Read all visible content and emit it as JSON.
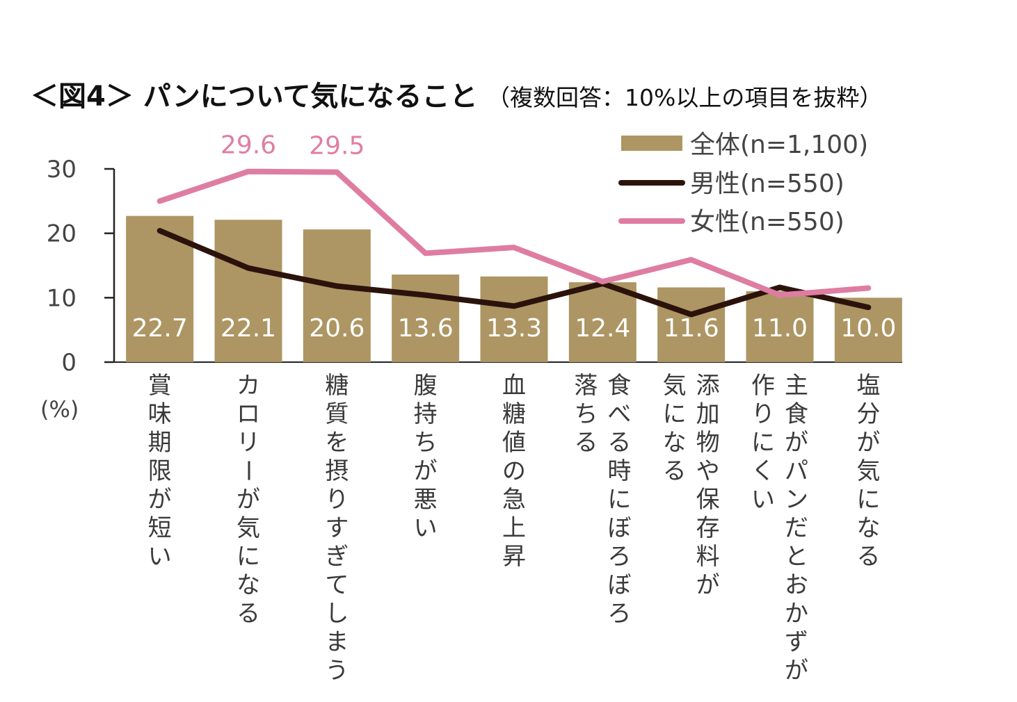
{
  "chart_data": {
    "type": "bar",
    "title": "＜図4＞ パンについて気になること",
    "subtitle": "（複数回答：10%以上の項目を抜粋）",
    "ylabel": "(%)",
    "ylim": [
      0,
      30
    ],
    "yticks": [
      "0",
      "10",
      "20",
      "30"
    ],
    "grid": false,
    "legend_position": "top-right",
    "categories": [
      "賞味期限が短い",
      "カロリーが気になる",
      "糖質を摂りすぎてしまう",
      "腹持ちが悪い",
      "血糖値の急上昇",
      "食べる時にぼろぼろ|落ちる",
      "添加物や保存料が|気になる",
      "主食がパンだとおかずが|作りにくい",
      "塩分が気になる"
    ],
    "series": [
      {
        "name": "全体(n=1,100)",
        "type": "bar",
        "color": "#ad9663",
        "values": [
          22.7,
          22.1,
          20.6,
          13.6,
          13.3,
          12.4,
          11.6,
          11.0,
          10.0
        ],
        "labels": [
          "22.7",
          "22.1",
          "20.6",
          "13.6",
          "13.3",
          "12.4",
          "11.6",
          "11.0",
          "10.0"
        ]
      },
      {
        "name": "男性(n=550)",
        "type": "line",
        "color": "#2b130c",
        "values": [
          20.4,
          14.6,
          11.8,
          10.4,
          8.7,
          12.2,
          7.4,
          11.6,
          8.5
        ]
      },
      {
        "name": "女性(n=550)",
        "type": "line",
        "color": "#de7da1",
        "values": [
          25.0,
          29.6,
          29.5,
          16.9,
          17.8,
          12.5,
          15.9,
          10.4,
          11.5
        ],
        "annotations": [
          {
            "index": 1,
            "text": "29.6"
          },
          {
            "index": 2,
            "text": "29.5"
          }
        ]
      }
    ]
  }
}
